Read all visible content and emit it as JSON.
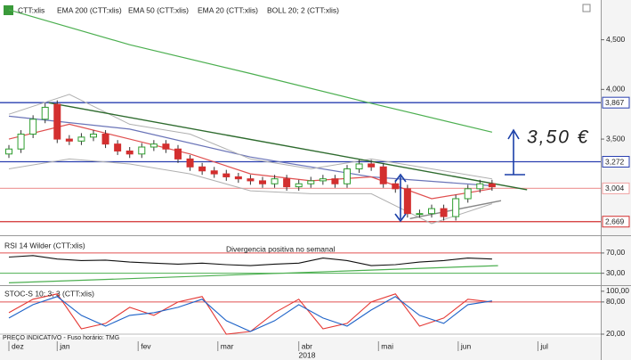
{
  "chart_data": [
    {
      "type": "candlestick",
      "name": "CTT:xlis",
      "open": [
        3.35,
        3.4,
        3.55,
        3.7,
        3.85,
        3.5,
        3.48,
        3.52,
        3.55,
        3.45,
        3.38,
        3.35,
        3.42,
        3.45,
        3.4,
        3.3,
        3.22,
        3.18,
        3.15,
        3.12,
        3.1,
        3.08,
        3.05,
        3.1,
        3.02,
        3.05,
        3.08,
        3.1,
        3.05,
        3.2,
        3.25,
        3.22,
        3.05,
        3.0,
        2.75,
        2.75,
        2.8,
        2.72,
        2.9,
        3.0,
        3.05
      ],
      "high": [
        3.44,
        3.59,
        3.74,
        3.86,
        3.89,
        3.54,
        3.56,
        3.59,
        3.59,
        3.49,
        3.42,
        3.46,
        3.49,
        3.49,
        3.44,
        3.34,
        3.26,
        3.22,
        3.19,
        3.16,
        3.14,
        3.12,
        3.14,
        3.14,
        3.09,
        3.12,
        3.14,
        3.14,
        3.24,
        3.29,
        3.29,
        3.26,
        3.09,
        3.04,
        2.79,
        2.84,
        2.84,
        2.94,
        3.04,
        3.09,
        3.09
      ],
      "low": [
        3.31,
        3.36,
        3.51,
        3.66,
        3.46,
        3.44,
        3.44,
        3.48,
        3.41,
        3.34,
        3.31,
        3.31,
        3.38,
        3.36,
        3.26,
        3.18,
        3.14,
        3.11,
        3.08,
        3.06,
        3.04,
        3.01,
        3.01,
        2.98,
        2.98,
        3.01,
        3.04,
        3.01,
        3.01,
        3.16,
        3.18,
        3.01,
        2.96,
        2.71,
        2.71,
        2.71,
        2.68,
        2.68,
        2.86,
        2.96,
        2.98
      ],
      "close": [
        3.4,
        3.55,
        3.7,
        3.82,
        3.5,
        3.48,
        3.52,
        3.55,
        3.45,
        3.38,
        3.35,
        3.42,
        3.45,
        3.4,
        3.3,
        3.22,
        3.18,
        3.15,
        3.12,
        3.1,
        3.08,
        3.05,
        3.1,
        3.02,
        3.05,
        3.08,
        3.1,
        3.05,
        3.2,
        3.25,
        3.22,
        3.05,
        3.0,
        2.75,
        2.75,
        2.8,
        2.72,
        2.9,
        3.0,
        3.05,
        3.02
      ],
      "up_color": "#2e9e2e",
      "down_color": "#d32f2f",
      "ylim": [
        2.55,
        4.9
      ],
      "yticks": [
        {
          "value": 4.5,
          "label": "4,500"
        },
        {
          "value": 4.0,
          "label": "4,000"
        },
        {
          "value": 3.5,
          "label": "3,500"
        }
      ],
      "series": [
        {
          "name": "EMA 200 (CTT:xlis)",
          "color": "#4caf50",
          "x": [
            0,
            10,
            20,
            30,
            40
          ],
          "values": [
            4.8,
            4.45,
            4.16,
            3.86,
            3.57
          ]
        },
        {
          "name": "EMA 50 (CTT:xlis)",
          "color": "#6a74b8",
          "x": [
            0,
            10,
            20,
            30,
            40
          ],
          "values": [
            3.73,
            3.6,
            3.32,
            3.12,
            3.03
          ]
        },
        {
          "name": "EMA 20 (CTT:xlis)",
          "color": "#e05050",
          "x": [
            0,
            5,
            10,
            15,
            20,
            25,
            30,
            35,
            40
          ],
          "values": [
            3.5,
            3.65,
            3.5,
            3.35,
            3.15,
            3.08,
            3.12,
            2.9,
            3.0
          ]
        },
        {
          "name": "BOLL 20; 2 (CTT:xlis)",
          "color": "#b0b0b0",
          "x": [
            0,
            5,
            10,
            15,
            20,
            25,
            30,
            35,
            40
          ],
          "upper": [
            3.75,
            3.95,
            3.65,
            3.55,
            3.3,
            3.2,
            3.3,
            3.2,
            3.1
          ],
          "lower": [
            3.2,
            3.3,
            3.25,
            3.15,
            2.98,
            2.95,
            2.95,
            2.65,
            2.85
          ]
        }
      ],
      "levels": [
        {
          "value": 3.867,
          "label": "3,867",
          "color": "#2a3fb0"
        },
        {
          "value": 3.272,
          "label": "3,272",
          "color": "#2a3fb0"
        },
        {
          "value": 3.004,
          "label": "3,004",
          "color": "#f0a0a0"
        },
        {
          "value": 2.669,
          "label": "2,669",
          "color": "#d32f2f"
        }
      ],
      "trendlines": [
        {
          "color": "#2e6b2e",
          "x": [
            3.3,
            42.9
          ],
          "values": [
            3.866,
            2.99
          ]
        },
        {
          "color": "#888888",
          "x": [
            33.2,
            40.75
          ],
          "values": [
            2.7,
            2.88
          ]
        }
      ],
      "annotation": "3,50 €"
    },
    {
      "type": "line",
      "title": "RSI 14 Wilder (CTT:xlis)",
      "annotation": "Divergencia positiva no semanal",
      "ylim": [
        10,
        98
      ],
      "yticks": [
        {
          "value": 70,
          "label": "70,00"
        },
        {
          "value": 30,
          "label": "30,00"
        }
      ],
      "levels": [
        {
          "value": 70,
          "color": "#e05050"
        },
        {
          "value": 30,
          "color": "#4caf50"
        }
      ],
      "series": [
        {
          "color": "#111111",
          "x": [
            0,
            2,
            4,
            6,
            8,
            10,
            12,
            14,
            16,
            18,
            20,
            22,
            24,
            26,
            28,
            30,
            32,
            34,
            36,
            38,
            40
          ],
          "values": [
            62,
            65,
            58,
            55,
            56,
            52,
            50,
            48,
            50,
            47,
            45,
            48,
            50,
            60,
            55,
            45,
            47,
            52,
            55,
            60,
            58
          ]
        }
      ],
      "trendlines": [
        {
          "color": "#4caf50",
          "x": [
            0,
            40.5
          ],
          "values": [
            11,
            45
          ]
        }
      ]
    },
    {
      "type": "line",
      "title": "STOC-S 10; 3; 3 (CTT:xlis)",
      "ylim": [
        15,
        108
      ],
      "yticks": [
        {
          "value": 100,
          "label": "100,00"
        },
        {
          "value": 80,
          "label": "80,00"
        },
        {
          "value": 20,
          "label": "20,00"
        }
      ],
      "levels": [
        {
          "value": 80,
          "color": "#e05050"
        },
        {
          "value": 20,
          "color": "#bbbbbb"
        }
      ],
      "series": [
        {
          "color": "#e53935",
          "x": [
            0,
            2,
            4,
            6,
            8,
            10,
            12,
            14,
            16,
            18,
            20,
            22,
            24,
            26,
            28,
            30,
            32,
            34,
            36,
            38,
            40
          ],
          "values": [
            60,
            85,
            95,
            30,
            40,
            70,
            55,
            80,
            90,
            20,
            25,
            60,
            85,
            30,
            40,
            80,
            95,
            35,
            50,
            85,
            80
          ]
        },
        {
          "color": "#1e63c8",
          "x": [
            0,
            2,
            4,
            6,
            8,
            10,
            12,
            14,
            16,
            18,
            20,
            22,
            24,
            26,
            28,
            30,
            32,
            34,
            36,
            38,
            40
          ],
          "values": [
            50,
            75,
            90,
            55,
            35,
            55,
            60,
            70,
            85,
            45,
            25,
            45,
            75,
            50,
            35,
            65,
            90,
            55,
            40,
            75,
            82
          ]
        }
      ]
    }
  ],
  "x_axis": {
    "xlim": [
      0,
      49
    ],
    "ticks": [
      {
        "value": 0,
        "label": "dez"
      },
      {
        "value": 4,
        "label": "jan"
      },
      {
        "value": 10.7,
        "label": "fev"
      },
      {
        "value": 17.3,
        "label": "mar"
      },
      {
        "value": 24,
        "label": "abr"
      },
      {
        "value": 30.6,
        "label": "mai"
      },
      {
        "value": 37.2,
        "label": "jun"
      },
      {
        "value": 43.8,
        "label": "jul"
      }
    ],
    "year": "2018",
    "note": "PREÇO INDICATIVO - Fuso horário: TMG"
  }
}
